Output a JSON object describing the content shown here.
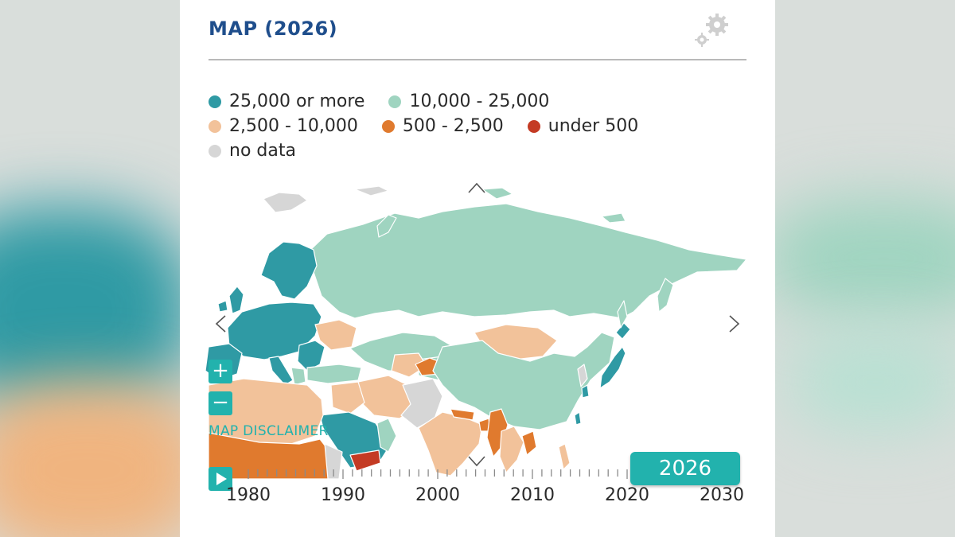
{
  "header": {
    "title": "MAP (2026)"
  },
  "legend": {
    "items": [
      {
        "label": "25,000 or more",
        "color": "#2f9aa4"
      },
      {
        "label": "10,000 - 25,000",
        "color": "#9fd4c0"
      },
      {
        "label": "2,500 - 10,000",
        "color": "#f2c29a"
      },
      {
        "label": "500 - 2,500",
        "color": "#e07a2e"
      },
      {
        "label": "under 500",
        "color": "#c43b24"
      },
      {
        "label": "no data",
        "color": "#d6d6d6"
      }
    ]
  },
  "map": {
    "region": "Europe, Asia and Africa (partial view)",
    "controls": {
      "zoom_in": "+",
      "zoom_out": "−"
    },
    "disclaimer": "MAP DISCLAIMER"
  },
  "timeline": {
    "selected_year": "2026",
    "tick_labels": [
      "1980",
      "1990",
      "2000",
      "2010",
      "2020",
      "2030"
    ]
  },
  "icons": [
    "gear-icon",
    "chevron-up-icon",
    "chevron-down-icon",
    "chevron-left-icon",
    "chevron-right-icon",
    "plus-icon",
    "minus-icon",
    "play-icon"
  ]
}
